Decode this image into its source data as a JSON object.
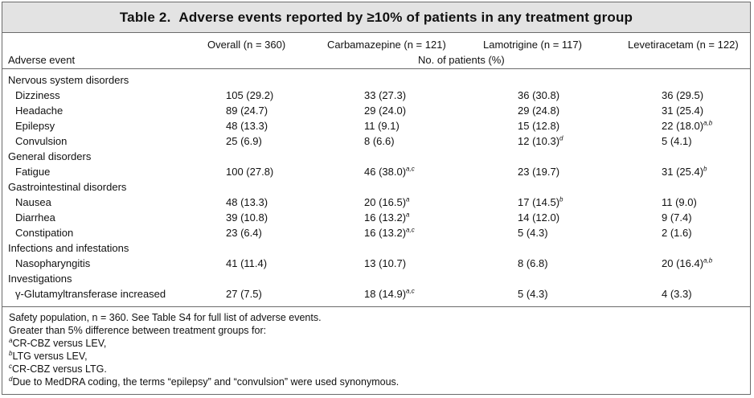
{
  "title": {
    "label": "Table",
    "number": "2.",
    "text": "Adverse events reported by ≥10% of patients in any treatment group"
  },
  "columns": {
    "overall": "Overall (n = 360)",
    "cbz": "Carbamazepine (n = 121)",
    "ltg": "Lamotrigine (n = 117)",
    "lev": "Levetiracetam (n = 122)",
    "row_header": "Adverse event",
    "unit": "No. of patients (%)"
  },
  "rows": [
    {
      "type": "category",
      "label": "Nervous system disorders"
    },
    {
      "type": "item",
      "label": "Dizziness",
      "overall": "105 (29.2)",
      "cbz": "33 (27.3)",
      "cbz_sup": "",
      "ltg": "36 (30.8)",
      "ltg_sup": "",
      "lev": "36 (29.5)",
      "lev_sup": ""
    },
    {
      "type": "item",
      "label": "Headache",
      "overall": "89 (24.7)",
      "cbz": "29 (24.0)",
      "cbz_sup": "",
      "ltg": "29 (24.8)",
      "ltg_sup": "",
      "lev": "31 (25.4)",
      "lev_sup": ""
    },
    {
      "type": "item",
      "label": "Epilepsy",
      "overall": "48 (13.3)",
      "cbz": "11 (9.1)",
      "cbz_sup": "",
      "ltg": "15 (12.8)",
      "ltg_sup": "",
      "lev": "22 (18.0)",
      "lev_sup": "a,b"
    },
    {
      "type": "item",
      "label": "Convulsion",
      "overall": "25 (6.9)",
      "cbz": "8 (6.6)",
      "cbz_sup": "",
      "ltg": "12 (10.3)",
      "ltg_sup": "d",
      "lev": "5 (4.1)",
      "lev_sup": ""
    },
    {
      "type": "category",
      "label": "General disorders"
    },
    {
      "type": "item",
      "label": "Fatigue",
      "overall": "100 (27.8)",
      "cbz": "46 (38.0)",
      "cbz_sup": "a,c",
      "ltg": "23 (19.7)",
      "ltg_sup": "",
      "lev": "31 (25.4)",
      "lev_sup": "b"
    },
    {
      "type": "category",
      "label": "Gastrointestinal disorders"
    },
    {
      "type": "item",
      "label": "Nausea",
      "overall": "48 (13.3)",
      "cbz": "20 (16.5)",
      "cbz_sup": "a",
      "ltg": "17 (14.5)",
      "ltg_sup": "b",
      "lev": "11 (9.0)",
      "lev_sup": ""
    },
    {
      "type": "item",
      "label": "Diarrhea",
      "overall": "39 (10.8)",
      "cbz": "16 (13.2)",
      "cbz_sup": "a",
      "ltg": "14 (12.0)",
      "ltg_sup": "",
      "lev": "9 (7.4)",
      "lev_sup": ""
    },
    {
      "type": "item",
      "label": "Constipation",
      "overall": "23 (6.4)",
      "cbz": "16 (13.2)",
      "cbz_sup": "a,c",
      "ltg": "5 (4.3)",
      "ltg_sup": "",
      "lev": "2 (1.6)",
      "lev_sup": ""
    },
    {
      "type": "category",
      "label": "Infections and infestations"
    },
    {
      "type": "item",
      "label": "Nasopharyngitis",
      "overall": "41 (11.4)",
      "cbz": "13 (10.7)",
      "cbz_sup": "",
      "ltg": "8 (6.8)",
      "ltg_sup": "",
      "lev": "20 (16.4)",
      "lev_sup": "a,b"
    },
    {
      "type": "category",
      "label": "Investigations"
    },
    {
      "type": "item",
      "label": "γ-Glutamyltransferase increased",
      "overall": "27 (7.5)",
      "cbz": "18 (14.9)",
      "cbz_sup": "a,c",
      "ltg": "5 (4.3)",
      "ltg_sup": "",
      "lev": "4 (3.3)",
      "lev_sup": ""
    }
  ],
  "footnotes": [
    {
      "sup": "",
      "text": "Safety population, n = 360. See Table S4 for full list of adverse events."
    },
    {
      "sup": "",
      "text": "Greater than 5% difference between treatment groups for:"
    },
    {
      "sup": "a",
      "text": "CR-CBZ versus LEV,"
    },
    {
      "sup": "b",
      "text": "LTG versus LEV,"
    },
    {
      "sup": "c",
      "text": "CR-CBZ versus LTG."
    },
    {
      "sup": "d",
      "text": "Due to MedDRA coding, the terms “epilepsy” and “convulsion” were used synonymous."
    }
  ]
}
